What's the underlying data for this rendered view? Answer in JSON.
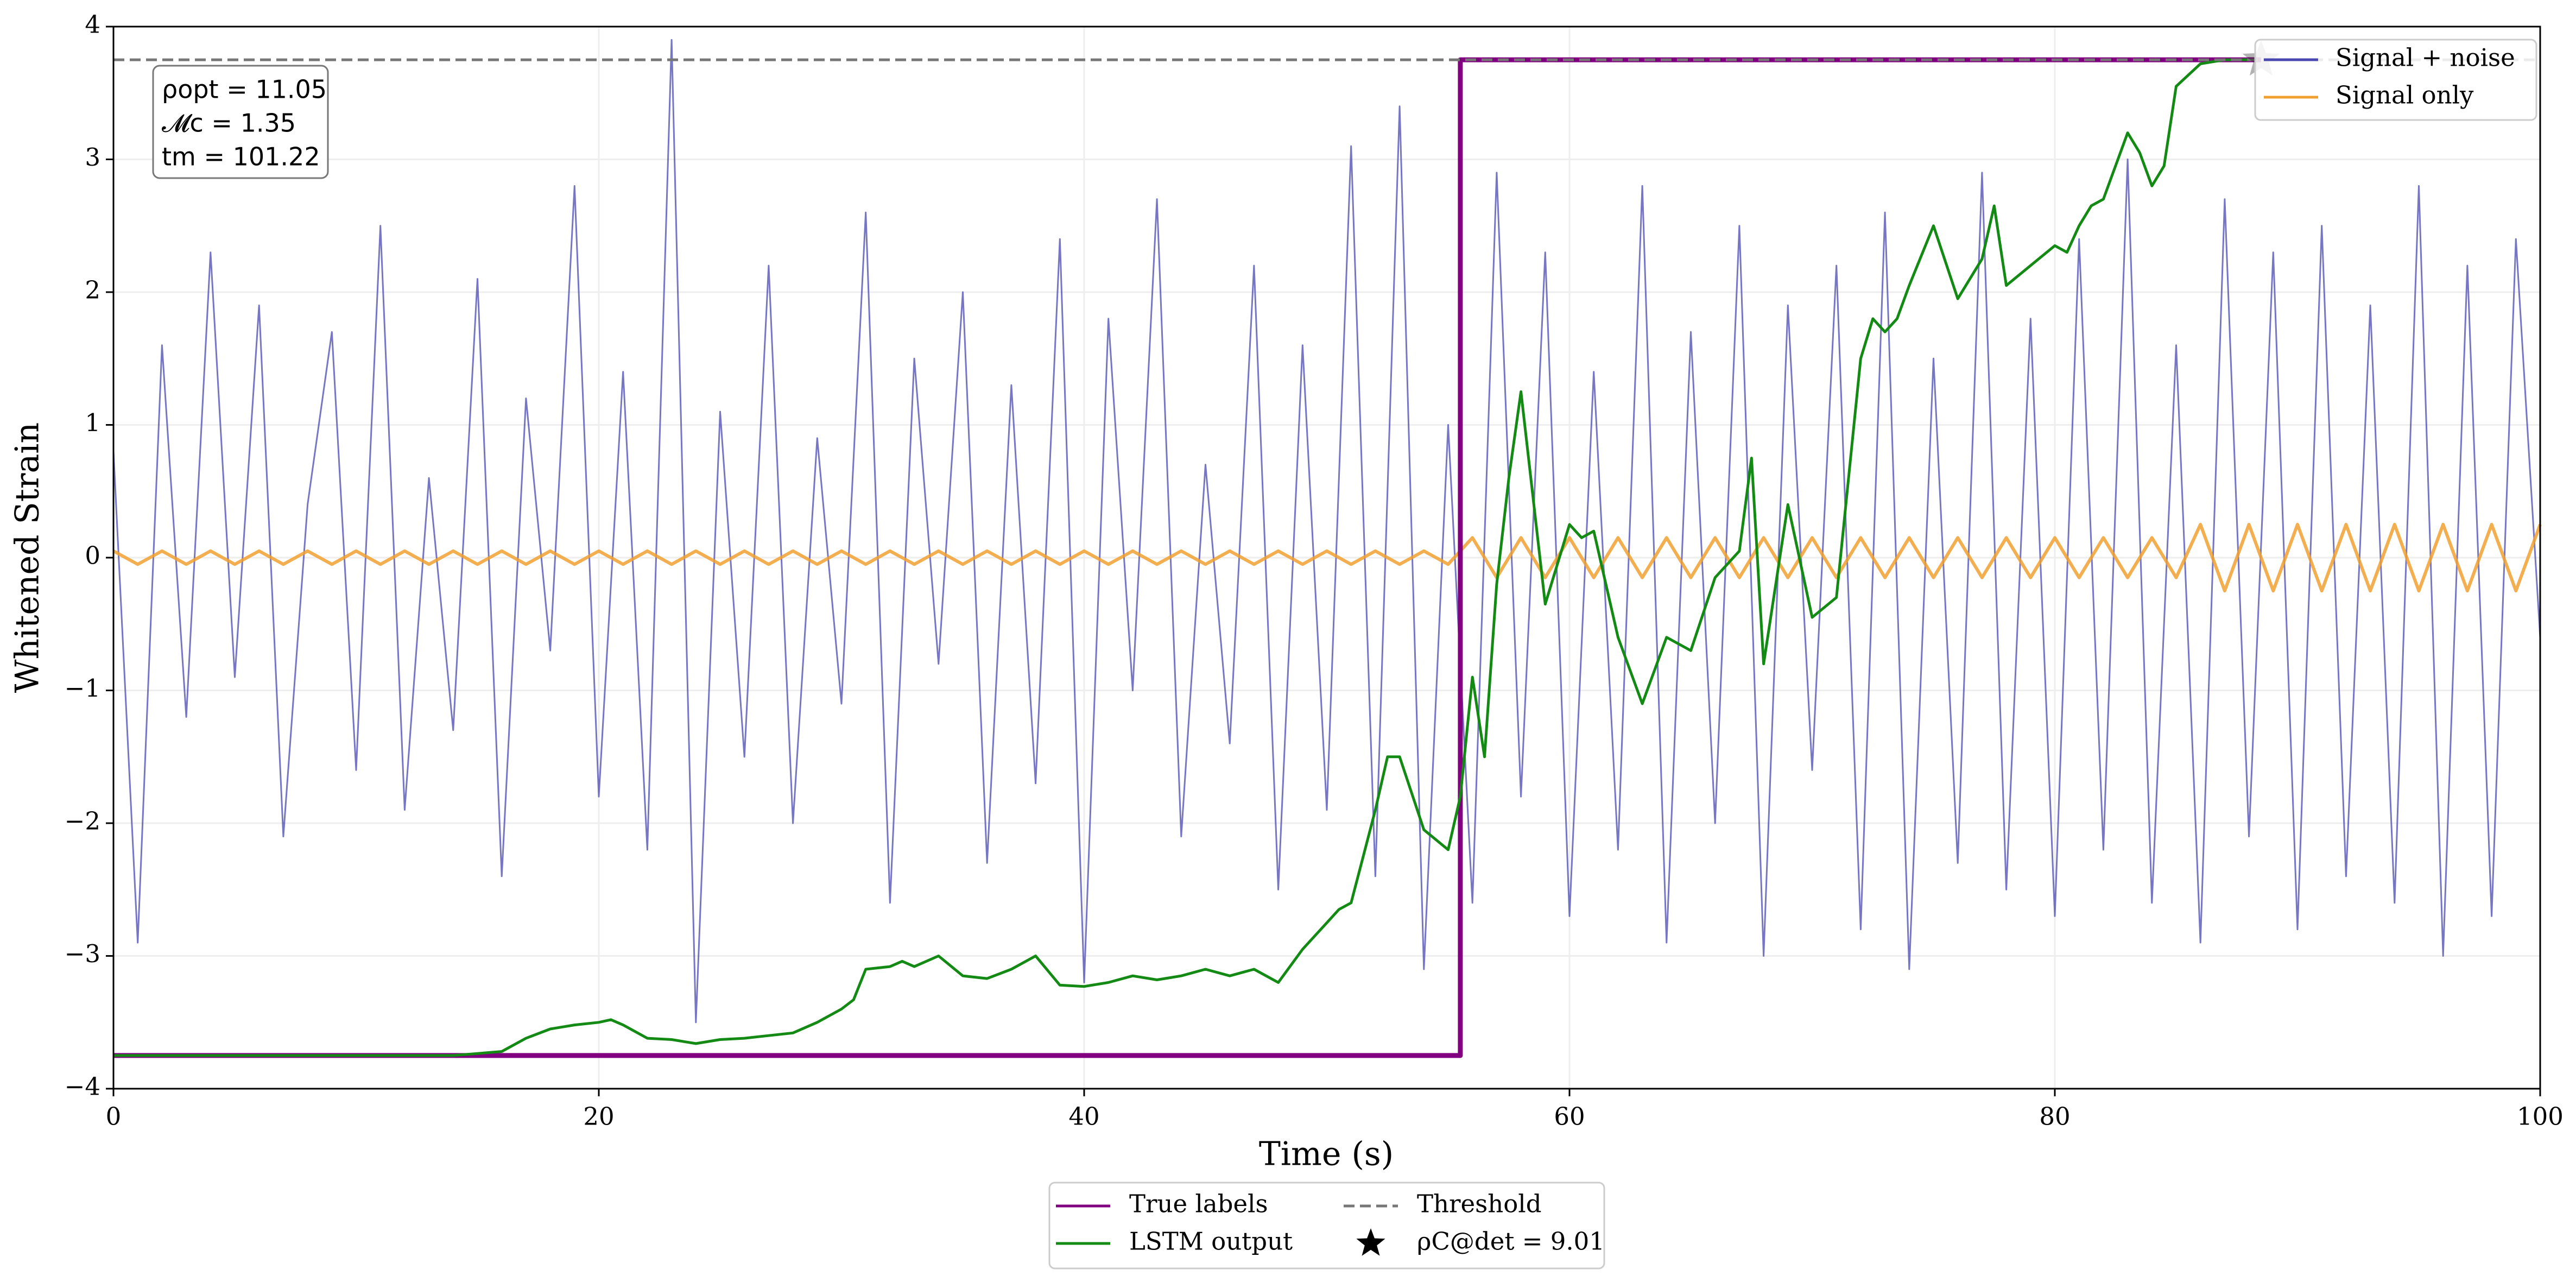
{
  "chart_data": {
    "type": "line",
    "xlabel": "Time (s)",
    "ylabel": "Whitened Strain",
    "xlim": [
      0,
      100
    ],
    "ylim": [
      -4,
      4
    ],
    "xticks": [
      0,
      20,
      40,
      60,
      80,
      100
    ],
    "yticks": [
      {
        "value": -4,
        "label": "−4"
      },
      {
        "value": -3,
        "label": "−3"
      },
      {
        "value": -2,
        "label": "−2"
      },
      {
        "value": -1,
        "label": "−1"
      },
      0,
      1,
      2,
      3,
      4
    ],
    "grid": true,
    "annotation": [
      "ρopt = 11.05",
      "𝓜c = 1.35",
      "tm = 101.22"
    ],
    "series": [
      {
        "name": "Signal + noise",
        "color": "#4848b0",
        "legend": "upper right",
        "x": [
          0,
          1,
          2,
          3,
          4,
          5,
          6,
          7,
          8,
          9,
          10,
          11,
          12,
          13,
          14,
          15,
          16,
          17,
          18,
          19,
          20,
          21,
          22,
          23,
          24,
          25,
          26,
          27,
          28,
          29,
          30,
          31,
          32,
          33,
          34,
          35,
          36,
          37,
          38,
          39,
          40,
          41,
          42,
          43,
          44,
          45,
          46,
          47,
          48,
          49,
          50,
          51,
          52,
          53,
          54,
          55,
          56,
          57,
          58,
          59,
          60,
          61,
          62,
          63,
          64,
          65,
          66,
          67,
          68,
          69,
          70,
          71,
          72,
          73,
          74,
          75,
          76,
          77,
          78,
          79,
          80,
          81,
          82,
          83,
          84,
          85,
          86,
          87,
          88,
          89,
          90,
          91,
          92,
          93,
          94,
          95,
          96,
          97,
          98,
          99,
          100
        ],
        "values": [
          0.8,
          -2.9,
          1.6,
          -1.2,
          2.3,
          -0.9,
          1.9,
          -2.1,
          0.4,
          1.7,
          -1.6,
          2.5,
          -1.9,
          0.6,
          -1.3,
          2.1,
          -2.4,
          1.2,
          -0.7,
          2.8,
          -1.8,
          1.4,
          -2.2,
          3.9,
          -3.5,
          1.1,
          -1.5,
          2.2,
          -2.0,
          0.9,
          -1.1,
          2.6,
          -2.6,
          1.5,
          -0.8,
          2.0,
          -2.3,
          1.3,
          -1.7,
          2.4,
          -3.2,
          1.8,
          -1.0,
          2.7,
          -2.1,
          0.7,
          -1.4,
          2.2,
          -2.5,
          1.6,
          -1.9,
          3.1,
          -2.4,
          3.4,
          -3.1,
          1.0,
          -2.6,
          2.9,
          -1.8,
          2.3,
          -2.7,
          1.4,
          -2.2,
          2.8,
          -2.9,
          1.7,
          -2.0,
          2.5,
          -3.0,
          1.9,
          -1.6,
          2.2,
          -2.8,
          2.6,
          -3.1,
          1.5,
          -2.3,
          2.9,
          -2.5,
          1.8,
          -2.7,
          2.4,
          -2.2,
          3.0,
          -2.6,
          1.6,
          -2.9,
          2.7,
          -2.1,
          2.3,
          -2.8,
          2.5,
          -2.4,
          1.9,
          -2.6,
          2.8,
          -3.0,
          2.2,
          -2.7,
          2.4,
          -0.6
        ]
      },
      {
        "name": "Signal only",
        "color": "#f0a030",
        "legend": "upper right",
        "x": [
          0,
          1,
          2,
          3,
          4,
          5,
          6,
          7,
          8,
          9,
          10,
          11,
          12,
          13,
          14,
          15,
          16,
          17,
          18,
          19,
          20,
          21,
          22,
          23,
          24,
          25,
          26,
          27,
          28,
          29,
          30,
          31,
          32,
          33,
          34,
          35,
          36,
          37,
          38,
          39,
          40,
          41,
          42,
          43,
          44,
          45,
          46,
          47,
          48,
          49,
          50,
          51,
          52,
          53,
          54,
          55,
          56,
          57,
          58,
          59,
          60,
          61,
          62,
          63,
          64,
          65,
          66,
          67,
          68,
          69,
          70,
          71,
          72,
          73,
          74,
          75,
          76,
          77,
          78,
          79,
          80,
          81,
          82,
          83,
          84,
          85,
          86,
          87,
          88,
          89,
          90,
          91,
          92,
          93,
          94,
          95,
          96,
          97,
          98,
          99,
          100
        ],
        "values": [
          0.05,
          -0.05,
          0.05,
          -0.05,
          0.05,
          -0.05,
          0.05,
          -0.05,
          0.05,
          -0.05,
          0.05,
          -0.05,
          0.05,
          -0.05,
          0.05,
          -0.05,
          0.05,
          -0.05,
          0.05,
          -0.05,
          0.05,
          -0.05,
          0.05,
          -0.05,
          0.05,
          -0.05,
          0.05,
          -0.05,
          0.05,
          -0.05,
          0.05,
          -0.05,
          0.05,
          -0.05,
          0.05,
          -0.05,
          0.05,
          -0.05,
          0.05,
          -0.05,
          0.05,
          -0.05,
          0.05,
          -0.05,
          0.05,
          -0.05,
          0.05,
          -0.05,
          0.05,
          -0.05,
          0.05,
          -0.05,
          0.05,
          -0.05,
          0.05,
          -0.05,
          0.15,
          -0.15,
          0.15,
          -0.15,
          0.15,
          -0.15,
          0.15,
          -0.15,
          0.15,
          -0.15,
          0.15,
          -0.15,
          0.15,
          -0.15,
          0.15,
          -0.15,
          0.15,
          -0.15,
          0.15,
          -0.15,
          0.15,
          -0.15,
          0.15,
          -0.15,
          0.15,
          -0.15,
          0.15,
          -0.15,
          0.15,
          -0.15,
          0.25,
          -0.25,
          0.25,
          -0.25,
          0.25,
          -0.25,
          0.25,
          -0.25,
          0.25,
          -0.25,
          0.25,
          -0.25,
          0.25,
          -0.25,
          0.25
        ]
      },
      {
        "name": "True labels",
        "color": "#800080",
        "legend": "below",
        "x": [
          0,
          55.5,
          55.5,
          88.5
        ],
        "values": [
          -3.75,
          -3.75,
          3.75,
          3.75
        ]
      },
      {
        "name": "LSTM output",
        "color": "#138a13",
        "legend": "below",
        "x": [
          0,
          14,
          16,
          17,
          18,
          19,
          20,
          20.5,
          21,
          22,
          23,
          24,
          25,
          26,
          27,
          28,
          29,
          30,
          30.5,
          31,
          32,
          32.5,
          33,
          34,
          35,
          36,
          37,
          38,
          39,
          40,
          41,
          42,
          43,
          44,
          45,
          46,
          47,
          48,
          49,
          50,
          50.5,
          51,
          51.5,
          52,
          52.5,
          53,
          54,
          55,
          55.5,
          56,
          56.5,
          57,
          57.5,
          58,
          59,
          60,
          60.5,
          61,
          62,
          63,
          64,
          65,
          66,
          67,
          67.5,
          68,
          69,
          70,
          71,
          72,
          72.5,
          73,
          73.5,
          74,
          75,
          76,
          77,
          77.5,
          78,
          79,
          80,
          80.5,
          81,
          81.5,
          82,
          83,
          83.5,
          84,
          84.5,
          85,
          86,
          87,
          88
        ],
        "values": [
          -3.75,
          -3.75,
          -3.72,
          -3.62,
          -3.55,
          -3.52,
          -3.5,
          -3.48,
          -3.52,
          -3.62,
          -3.63,
          -3.66,
          -3.63,
          -3.62,
          -3.6,
          -3.58,
          -3.5,
          -3.4,
          -3.33,
          -3.1,
          -3.08,
          -3.04,
          -3.08,
          -3.0,
          -3.15,
          -3.17,
          -3.1,
          -3.0,
          -3.22,
          -3.23,
          -3.2,
          -3.15,
          -3.18,
          -3.15,
          -3.1,
          -3.15,
          -3.1,
          -3.2,
          -2.95,
          -2.75,
          -2.65,
          -2.6,
          -2.25,
          -1.9,
          -1.5,
          -1.5,
          -2.05,
          -2.2,
          -1.8,
          -0.9,
          -1.5,
          -0.2,
          0.6,
          1.25,
          -0.35,
          0.25,
          0.15,
          0.2,
          -0.6,
          -1.1,
          -0.6,
          -0.7,
          -0.15,
          0.05,
          0.75,
          -0.8,
          0.4,
          -0.45,
          -0.3,
          1.5,
          1.8,
          1.7,
          1.8,
          2.05,
          2.5,
          1.95,
          2.25,
          2.65,
          2.05,
          2.2,
          2.35,
          2.3,
          2.5,
          2.65,
          2.7,
          3.2,
          3.05,
          2.8,
          2.95,
          3.55,
          3.72,
          3.75,
          3.75
        ]
      }
    ],
    "threshold": {
      "name": "Threshold",
      "value": 3.75,
      "color": "#777777",
      "legend": "below"
    },
    "marker": {
      "name": "ρC@det = 9.01",
      "x": 88.5,
      "y": 3.75,
      "color": "#000000",
      "legend": "below"
    }
  }
}
